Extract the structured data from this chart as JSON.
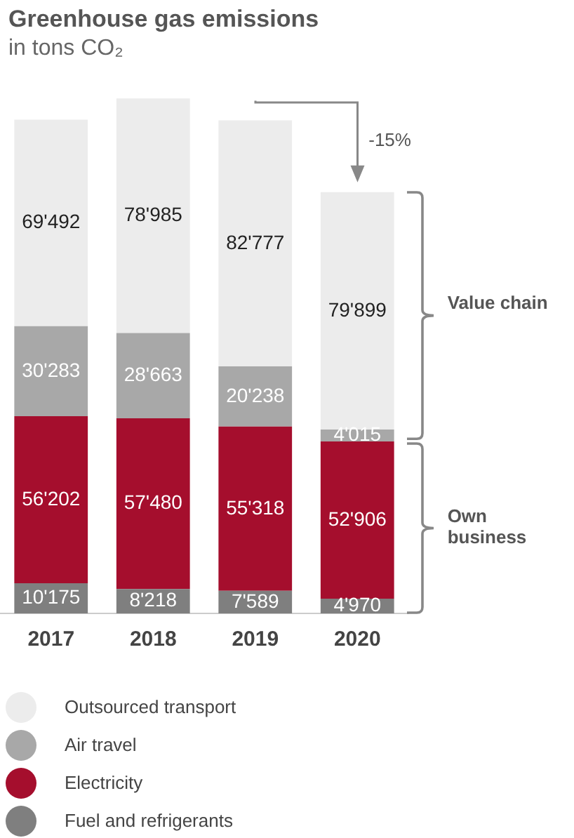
{
  "chart_data": {
    "type": "bar",
    "title": "Greenhouse gas emissions",
    "subtitle": "in tons CO₂",
    "stacked": true,
    "legend": "bottom",
    "grid": false,
    "tick_labels": "x",
    "categories": [
      "2017",
      "2018",
      "2019",
      "2020"
    ],
    "series": [
      {
        "name": "Fuel and refrigerants",
        "color": "#7f7f7f",
        "values": [
          10175,
          8218,
          7589,
          4970
        ],
        "value_labels": [
          "10'175",
          "8'218",
          "7'589",
          "4'970"
        ]
      },
      {
        "name": "Electricity",
        "color": "#a50e2d",
        "values": [
          56202,
          57480,
          55318,
          52906
        ],
        "value_labels": [
          "56'202",
          "57'480",
          "55'318",
          "52'906"
        ]
      },
      {
        "name": "Air travel",
        "color": "#a8a8a8",
        "values": [
          30283,
          28663,
          20238,
          4015
        ],
        "value_labels": [
          "30'283",
          "28'663",
          "20'238",
          "4'015"
        ]
      },
      {
        "name": "Outsourced transport",
        "color": "#ececec",
        "values": [
          69492,
          78985,
          82777,
          79899
        ],
        "value_labels": [
          "69'492",
          "78'985",
          "82'777",
          "79'899"
        ]
      }
    ],
    "annotations": [
      "-15%",
      "Value chain",
      "Own business"
    ]
  }
}
